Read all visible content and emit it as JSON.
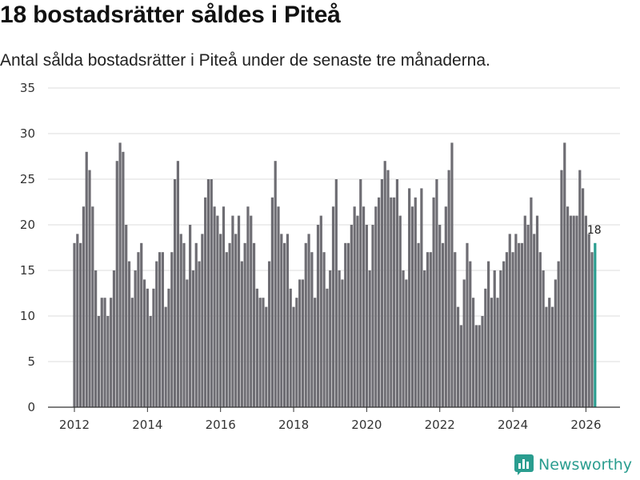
{
  "header": {
    "title": "18 bostadsrätter såldes i Piteå",
    "subtitle": "Antal sålda bostadsrätter i Piteå under de senaste tre månaderna."
  },
  "brand": {
    "name": "Newsworthy",
    "color": "#2a9d8f"
  },
  "colors": {
    "bar": "#6e6d73",
    "highlight": "#2a9d8f",
    "grid": "#dddddd",
    "axis": "#333333"
  },
  "chart_data": {
    "type": "bar",
    "title": "18 bostadsrätter såldes i Piteå",
    "subtitle": "Antal sålda bostadsrätter i Piteå under de senaste tre månaderna.",
    "xlabel": "",
    "ylabel": "",
    "ylim": [
      0,
      35
    ],
    "yticks": [
      0,
      5,
      10,
      15,
      20,
      25,
      30,
      35
    ],
    "xticks": [
      "2012",
      "2014",
      "2016",
      "2018",
      "2020",
      "2022",
      "2024",
      "2026"
    ],
    "start": "2012-01",
    "frequency": "monthly",
    "values": [
      18,
      19,
      18,
      22,
      28,
      26,
      22,
      15,
      10,
      12,
      12,
      10,
      12,
      15,
      27,
      29,
      28,
      20,
      16,
      12,
      15,
      17,
      18,
      14,
      13,
      10,
      13,
      16,
      17,
      17,
      11,
      13,
      17,
      25,
      27,
      19,
      18,
      14,
      20,
      15,
      18,
      16,
      19,
      23,
      25,
      25,
      22,
      21,
      19,
      22,
      17,
      18,
      21,
      19,
      21,
      16,
      18,
      22,
      21,
      18,
      13,
      12,
      12,
      11,
      16,
      23,
      27,
      22,
      19,
      18,
      19,
      13,
      11,
      12,
      14,
      14,
      18,
      19,
      17,
      12,
      20,
      21,
      17,
      13,
      15,
      22,
      25,
      15,
      14,
      18,
      18,
      20,
      22,
      21,
      25,
      22,
      20,
      15,
      20,
      22,
      23,
      25,
      27,
      26,
      23,
      23,
      25,
      21,
      15,
      14,
      24,
      22,
      23,
      18,
      24,
      15,
      17,
      17,
      23,
      25,
      20,
      18,
      22,
      26,
      29,
      17,
      11,
      9,
      14,
      18,
      16,
      12,
      9,
      9,
      10,
      13,
      16,
      12,
      15,
      12,
      15,
      16,
      17,
      19,
      17,
      19,
      18,
      18,
      21,
      20,
      23,
      19,
      21,
      17,
      15,
      11,
      12,
      11,
      14,
      16,
      26,
      29,
      22,
      21,
      21,
      21,
      26,
      24,
      21,
      19,
      17,
      18
    ],
    "highlight_last": true,
    "annotations": [
      {
        "label": "18",
        "index": "last"
      }
    ]
  }
}
